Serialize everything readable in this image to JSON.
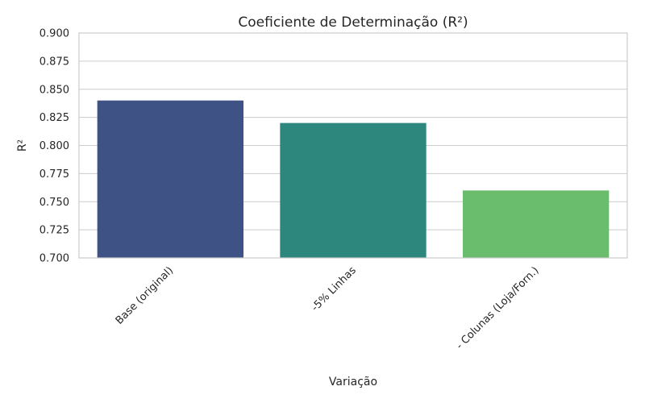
{
  "chart_data": {
    "type": "bar",
    "title": "Coeficiente de Determinação (R²)",
    "xlabel": "Variação",
    "ylabel": "R²",
    "categories": [
      "Base (original)",
      "-5% Linhas",
      "- Colunas (Loja/Forn.)"
    ],
    "values": [
      0.84,
      0.82,
      0.76
    ],
    "colors": [
      "#3e5286",
      "#2d877d",
      "#6bbd6e"
    ],
    "ylim": [
      0.7,
      0.9
    ],
    "yticks": [
      0.7,
      0.725,
      0.75,
      0.775,
      0.8,
      0.825,
      0.85,
      0.875,
      0.9
    ],
    "ytick_labels": [
      "0.700",
      "0.725",
      "0.750",
      "0.775",
      "0.800",
      "0.825",
      "0.850",
      "0.875",
      "0.900"
    ],
    "grid": "horizontal",
    "xtick_rotation": 45
  }
}
